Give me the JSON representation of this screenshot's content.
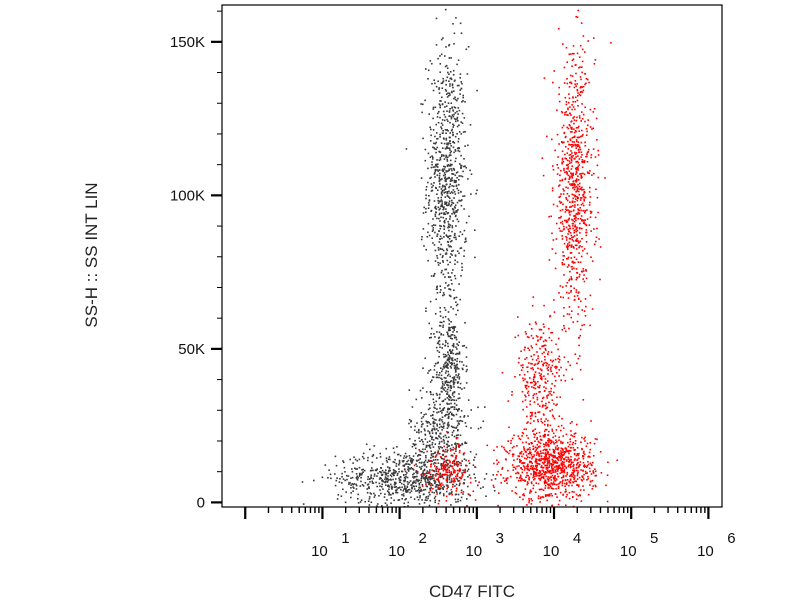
{
  "chart_data": {
    "type": "scatter",
    "title": "",
    "xlabel": "CD47 FITC",
    "ylabel": "SS-H :: SS INT LIN",
    "x_scale": "log",
    "y_scale": "linear",
    "xlim": [
      0.5,
      1500000
    ],
    "ylim": [
      -1500,
      162000
    ],
    "x_ticks": [
      {
        "value": 10,
        "base": "10",
        "exp": "1"
      },
      {
        "value": 100,
        "base": "10",
        "exp": "2"
      },
      {
        "value": 1000,
        "base": "10",
        "exp": "3"
      },
      {
        "value": 10000,
        "base": "10",
        "exp": "4"
      },
      {
        "value": 100000,
        "base": "10",
        "exp": "5"
      },
      {
        "value": 1000000,
        "base": "10",
        "exp": "6"
      }
    ],
    "y_ticks": [
      {
        "value": 0,
        "label": "0"
      },
      {
        "value": 50000,
        "label": "50K"
      },
      {
        "value": 100000,
        "label": "100K"
      },
      {
        "value": 150000,
        "label": "150K"
      }
    ],
    "grid": false,
    "legend": "none",
    "series": [
      {
        "color": "#3a3a3a",
        "clusters": [
          {
            "x_center": 400,
            "x_spread_decades": 0.13,
            "y_center": 105000,
            "y_spread": 22000,
            "relative_density": 0.3
          },
          {
            "x_center": 430,
            "x_spread_decades": 0.1,
            "y_center": 45000,
            "y_spread": 9000,
            "relative_density": 0.12
          },
          {
            "x_center": 120,
            "x_spread_decades": 0.45,
            "y_center": 8000,
            "y_spread": 4500,
            "relative_density": 0.28
          },
          {
            "x_center": 330,
            "x_spread_decades": 0.2,
            "y_center": 22000,
            "y_spread": 8000,
            "relative_density": 0.14
          }
        ]
      },
      {
        "color": "#ff0000",
        "clusters": [
          {
            "x_center": 18000,
            "x_spread_decades": 0.13,
            "y_center": 102000,
            "y_spread": 22000,
            "relative_density": 0.3
          },
          {
            "x_center": 9000,
            "x_spread_decades": 0.28,
            "y_center": 12000,
            "y_spread": 5500,
            "relative_density": 0.36
          },
          {
            "x_center": 6500,
            "x_spread_decades": 0.16,
            "y_center": 40000,
            "y_spread": 10000,
            "relative_density": 0.12
          },
          {
            "x_center": 420,
            "x_spread_decades": 0.15,
            "y_center": 11000,
            "y_spread": 4000,
            "relative_density": 0.07
          }
        ]
      }
    ]
  }
}
